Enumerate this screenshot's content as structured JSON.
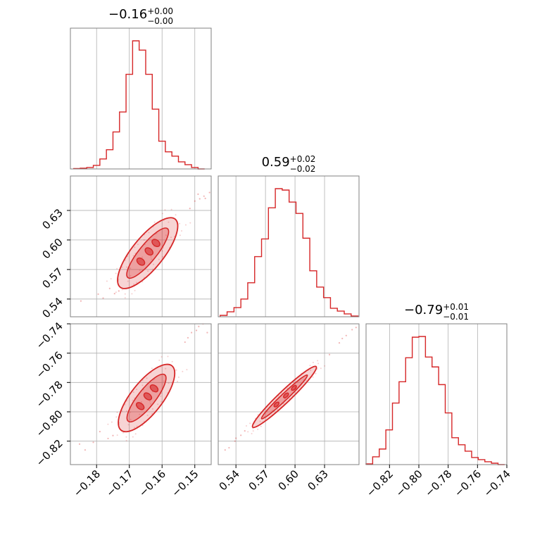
{
  "chart_data": {
    "type": "corner",
    "color": "#d62728",
    "grid": true,
    "parameters": [
      {
        "title": {
          "median": "−0.16",
          "plus": "+0.00",
          "minus": "−0.00"
        },
        "range": [
          -0.188,
          -0.145
        ],
        "ticks": [
          -0.18,
          -0.17,
          -0.16,
          -0.15
        ],
        "tick_labels": [
          "−0.18",
          "−0.17",
          "−0.16",
          "−0.15"
        ]
      },
      {
        "title": {
          "median": "0.59",
          "plus": "+0.02",
          "minus": "−0.02"
        },
        "range": [
          0.522,
          0.665
        ],
        "ticks": [
          0.54,
          0.57,
          0.6,
          0.63
        ],
        "tick_labels": [
          "0.54",
          "0.57",
          "0.60",
          "0.63"
        ]
      },
      {
        "title": {
          "median": "−0.79",
          "plus": "+0.01",
          "minus": "−0.01"
        },
        "range": [
          -0.836,
          -0.74
        ],
        "ticks": [
          -0.82,
          -0.8,
          -0.78,
          -0.76,
          -0.74
        ],
        "tick_labels": [
          "−0.82",
          "−0.80",
          "−0.78",
          "−0.76",
          "−0.74"
        ]
      }
    ],
    "histograms": [
      {
        "param": 0,
        "edges": [
          -0.187,
          -0.185,
          -0.183,
          -0.181,
          -0.179,
          -0.177,
          -0.175,
          -0.173,
          -0.171,
          -0.169,
          -0.167,
          -0.165,
          -0.163,
          -0.161,
          -0.159,
          -0.157,
          -0.155,
          -0.153,
          -0.151,
          -0.149,
          -0.147
        ],
        "counts": [
          0.5,
          1,
          2,
          5,
          14,
          27,
          52,
          80,
          133,
          180,
          167,
          133,
          84,
          39,
          24,
          18,
          10,
          6,
          2,
          0
        ]
      },
      {
        "param": 1,
        "edges": [
          0.524,
          0.531,
          0.538,
          0.545,
          0.552,
          0.559,
          0.566,
          0.573,
          0.58,
          0.587,
          0.594,
          0.601,
          0.608,
          0.615,
          0.622,
          0.629,
          0.636,
          0.643,
          0.65,
          0.657,
          0.664
        ],
        "counts": [
          2,
          7,
          13,
          25,
          48,
          85,
          110,
          154,
          181,
          179,
          162,
          146,
          111,
          65,
          42,
          27,
          12,
          8,
          4,
          1
        ]
      },
      {
        "param": 2,
        "edges": [
          -0.836,
          -0.8315,
          -0.827,
          -0.8225,
          -0.818,
          -0.8135,
          -0.809,
          -0.8045,
          -0.8,
          -0.7955,
          -0.791,
          -0.7865,
          -0.782,
          -0.7775,
          -0.773,
          -0.7685,
          -0.764,
          -0.7595,
          -0.755,
          -0.7505,
          -0.746,
          -0.7415
        ],
        "counts": [
          1,
          11,
          22,
          49,
          87,
          117,
          151,
          180,
          181,
          152,
          138,
          113,
          73,
          38,
          28,
          19,
          10,
          7,
          4,
          2,
          0
        ]
      }
    ],
    "pairs": [
      {
        "x": 0,
        "y": 1,
        "center": [
          -0.1632,
          0.5905
        ],
        "p1": [
          -0.1728,
          0.5521
        ],
        "p2": [
          -0.156,
          0.6212
        ],
        "width": 0.0048,
        "samples": [
          [
            -0.1848,
            0.538
          ],
          [
            -0.1795,
            0.545
          ],
          [
            -0.178,
            0.541
          ],
          [
            -0.176,
            0.5508
          ],
          [
            -0.1745,
            0.5455
          ],
          [
            -0.1732,
            0.5482
          ],
          [
            -0.1515,
            0.632
          ],
          [
            -0.15,
            0.6395
          ],
          [
            -0.1485,
            0.6418
          ],
          [
            -0.1472,
            0.6445
          ],
          [
            -0.149,
            0.6465
          ],
          [
            -0.1455,
            0.6482
          ],
          [
            -0.1468,
            0.6422
          ]
        ]
      },
      {
        "x": 0,
        "y": 2,
        "center": [
          -0.1632,
          -0.7886
        ],
        "p1": [
          -0.1725,
          -0.8126
        ],
        "p2": [
          -0.157,
          -0.7686
        ],
        "width": 0.0048,
        "samples": [
          [
            -0.1852,
            -0.822
          ],
          [
            -0.1835,
            -0.826
          ],
          [
            -0.181,
            -0.8208
          ],
          [
            -0.179,
            -0.8135
          ],
          [
            -0.1765,
            -0.8182
          ],
          [
            -0.175,
            -0.8162
          ],
          [
            -0.153,
            -0.7525
          ],
          [
            -0.151,
            -0.746
          ],
          [
            -0.1495,
            -0.7445
          ],
          [
            -0.1475,
            -0.74
          ],
          [
            -0.1488,
            -0.7418
          ],
          [
            -0.1462,
            -0.746
          ],
          [
            -0.1521,
            -0.7495
          ]
        ]
      },
      {
        "x": 1,
        "y": 2,
        "center": [
          0.5905,
          -0.7895
        ],
        "p1": [
          0.557,
          -0.8105
        ],
        "p2": [
          0.6215,
          -0.7692
        ],
        "width": 0.006,
        "samples": [
          [
            0.529,
            -0.826
          ],
          [
            0.533,
            -0.8245
          ],
          [
            0.54,
            -0.818
          ],
          [
            0.545,
            -0.816
          ],
          [
            0.539,
            -0.82
          ],
          [
            0.549,
            -0.813
          ],
          [
            0.635,
            -0.761
          ],
          [
            0.645,
            -0.753
          ],
          [
            0.652,
            -0.748
          ],
          [
            0.658,
            -0.744
          ],
          [
            0.662,
            -0.7425
          ],
          [
            0.648,
            -0.75
          ]
        ]
      }
    ]
  }
}
